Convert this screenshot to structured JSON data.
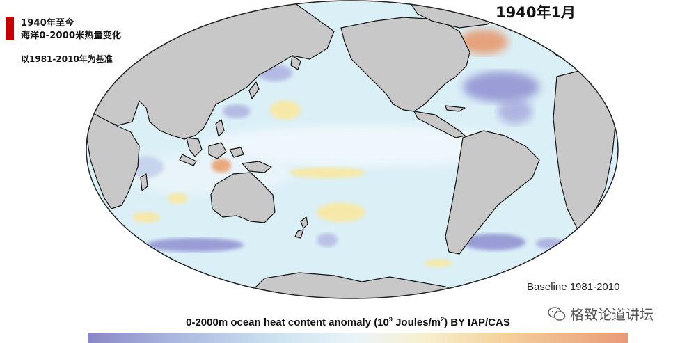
{
  "title": {
    "line1": "1940年至今",
    "line2": "海洋0-2000米热量变化"
  },
  "baseline_cn": "以1981-2010年为基准",
  "date_label": "1940年1月",
  "baseline_en": "Baseline 1981-2010",
  "colorbar": {
    "title_prefix": "0-2000m ocean heat content anomaly (10",
    "title_exp1": "9",
    "title_mid": " Joules/m",
    "title_exp2": "2",
    "title_suffix": ") BY IAP/CAS",
    "colors": [
      "#8a86c6",
      "#a8b4dd",
      "#cde3f1",
      "#eaf4f8",
      "#f7f0cf",
      "#f4cf9a",
      "#e89a78"
    ]
  },
  "watermark": "格致论道讲坛",
  "map_colors": {
    "ocean": "#dbeff7",
    "land": "#c8c8c8",
    "coast": "#111111",
    "cool_anomaly": "#8f8fd0",
    "warm_anomaly": "#f6e9a8",
    "hot_anomaly": "#e59a6e"
  }
}
